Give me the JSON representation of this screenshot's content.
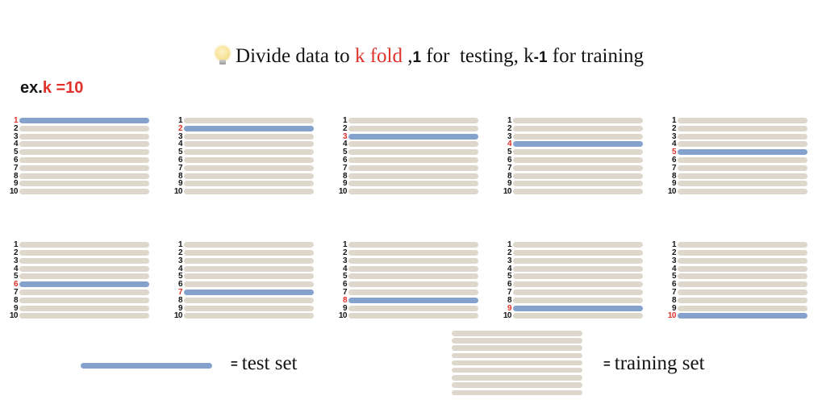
{
  "title": {
    "icon": "lightbulb",
    "segments": [
      {
        "text": "Divide data to ",
        "style": "serif"
      },
      {
        "text": "k fold",
        "style": "serif-red"
      },
      {
        "text": " ,",
        "style": "serif"
      },
      {
        "text": "1",
        "style": "bold-sans"
      },
      {
        "text": " for  testing, k",
        "style": "serif"
      },
      {
        "text": "-1",
        "style": "bold-sans"
      },
      {
        "text": " for training",
        "style": "serif"
      }
    ]
  },
  "example": {
    "prefix": "ex.",
    "value": "k =10"
  },
  "folds": {
    "k": 10,
    "rows_per_panel": 10,
    "panels": [
      {
        "test_fold": 1
      },
      {
        "test_fold": 2
      },
      {
        "test_fold": 3
      },
      {
        "test_fold": 4
      },
      {
        "test_fold": 5
      },
      {
        "test_fold": 6
      },
      {
        "test_fold": 7
      },
      {
        "test_fold": 8
      },
      {
        "test_fold": 9
      },
      {
        "test_fold": 10
      }
    ]
  },
  "legend": {
    "test": {
      "eq": "=",
      "label": "test set"
    },
    "training": {
      "eq": "=",
      "label": "training set",
      "bar_count": 9
    }
  },
  "colors": {
    "test_bar": "#85a2cc",
    "training_bar": "#ddd8cb",
    "accent_red": "#e0312a",
    "text": "#141414"
  }
}
